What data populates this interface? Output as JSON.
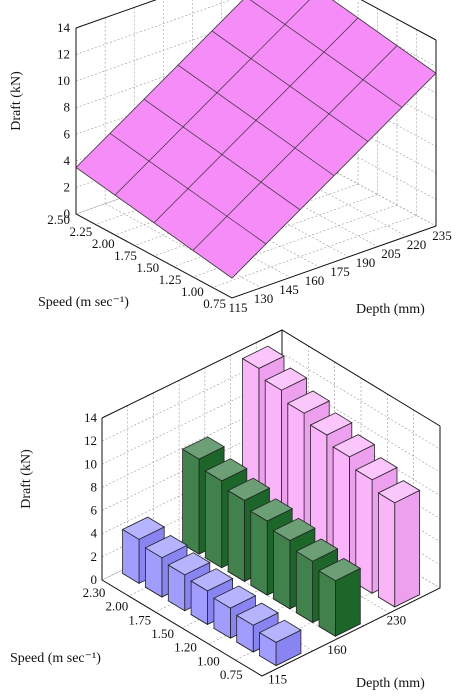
{
  "colors": {
    "surface": "#f58cf7",
    "bar_115": "#8f8cff",
    "bar_160": "#1f6b2c",
    "bar_230": "#f9a8f9"
  },
  "chart_data": [
    {
      "type": "surface",
      "title": "",
      "zlabel": "Draft (kN)",
      "xlabel": "Depth (mm)",
      "ylabel": "Speed (m sec⁻¹)",
      "x_ticks": [
        "115",
        "130",
        "145",
        "160",
        "175",
        "190",
        "205",
        "220",
        "235"
      ],
      "y_ticks": [
        "0.75",
        "1.00",
        "1.25",
        "1.50",
        "1.75",
        "2.00",
        "2.25",
        "2.50"
      ],
      "z_ticks": [
        "0",
        "2",
        "4",
        "6",
        "8",
        "10",
        "12",
        "14"
      ],
      "xlim": [
        115,
        235
      ],
      "ylim": [
        0.75,
        2.5
      ],
      "zlim": [
        0,
        14
      ],
      "corners": {
        "depth_115_speed_2_50": 3.5,
        "depth_115_speed_0_75": 1.5,
        "depth_235_speed_2_50": 13.5,
        "depth_235_speed_0_75": 11.5
      },
      "grid": true
    },
    {
      "type": "bar3d",
      "title": "",
      "zlabel": "Draft (kN)",
      "xlabel": "Depth (mm)",
      "ylabel": "Speed (m sec⁻¹)",
      "x_ticks": [
        "115",
        "160",
        "230"
      ],
      "y_ticks": [
        "0.75",
        "1.00",
        "1.20",
        "1.50",
        "1.75",
        "2.00",
        "2.30"
      ],
      "z_ticks": [
        "0",
        "2",
        "4",
        "6",
        "8",
        "10",
        "12",
        "14"
      ],
      "zlim": [
        0,
        14
      ],
      "series": [
        {
          "name": "115",
          "values": [
            2.0,
            2.3,
            2.6,
            2.9,
            3.1,
            3.4,
            3.8
          ]
        },
        {
          "name": "160",
          "values": [
            4.8,
            5.3,
            5.9,
            6.4,
            7.0,
            7.5,
            8.2
          ]
        },
        {
          "name": "230",
          "values": [
            9.0,
            9.8,
            10.6,
            11.3,
            12.0,
            12.8,
            13.5
          ]
        }
      ],
      "grid": true
    }
  ]
}
